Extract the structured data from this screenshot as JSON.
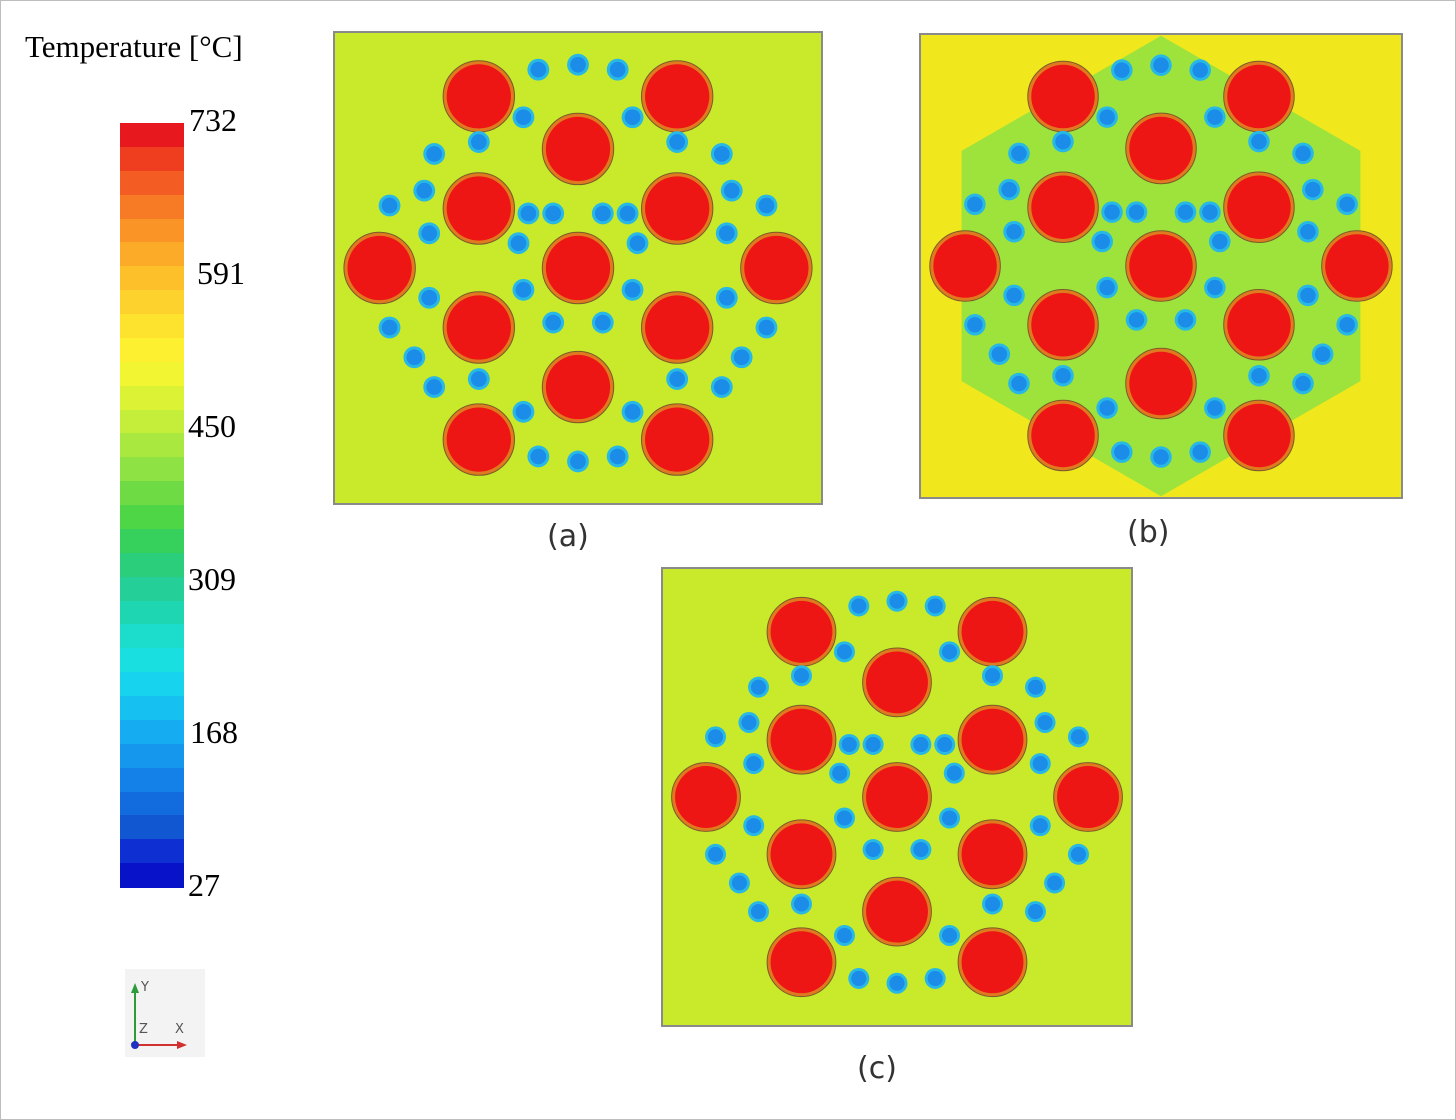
{
  "legend": {
    "title": "Temperature [°C]",
    "ticks": [
      "732",
      "591",
      "450",
      "309",
      "168",
      "27"
    ],
    "color_levels": [
      "#e8191e",
      "#ef3d20",
      "#f35c22",
      "#f77a24",
      "#fa9426",
      "#fcab28",
      "#fdc02a",
      "#fed22c",
      "#fee32e",
      "#fdf030",
      "#f2f531",
      "#dcf335",
      "#c4ee3a",
      "#a9e83f",
      "#8ee243",
      "#6fdb44",
      "#4ed646",
      "#36d05c",
      "#2bce7a",
      "#24d097",
      "#1fd6b2",
      "#1cdccb",
      "#19dfe0",
      "#17d3ee",
      "#16c1f2",
      "#15acf1",
      "#1497ed",
      "#1381e8",
      "#126cde",
      "#1157d2",
      "#0e2fd2",
      "#0812c8"
    ]
  },
  "panels": [
    {
      "caption": "(a)",
      "background": "#c8ea2a"
    },
    {
      "caption": "(b)",
      "background": "#f0e81c"
    },
    {
      "caption": "(c)",
      "background": "#c8ea2a"
    }
  ],
  "colors": {
    "fuel_core": "#ee1515",
    "fuel_rim": "#e07a1f",
    "coolant_core": "#1b8ce8",
    "coolant_rim": "#28b8e6",
    "inner_green": "#9ee23c"
  },
  "axis_triad": {
    "y": "Y",
    "z": "Z",
    "x": "X"
  }
}
